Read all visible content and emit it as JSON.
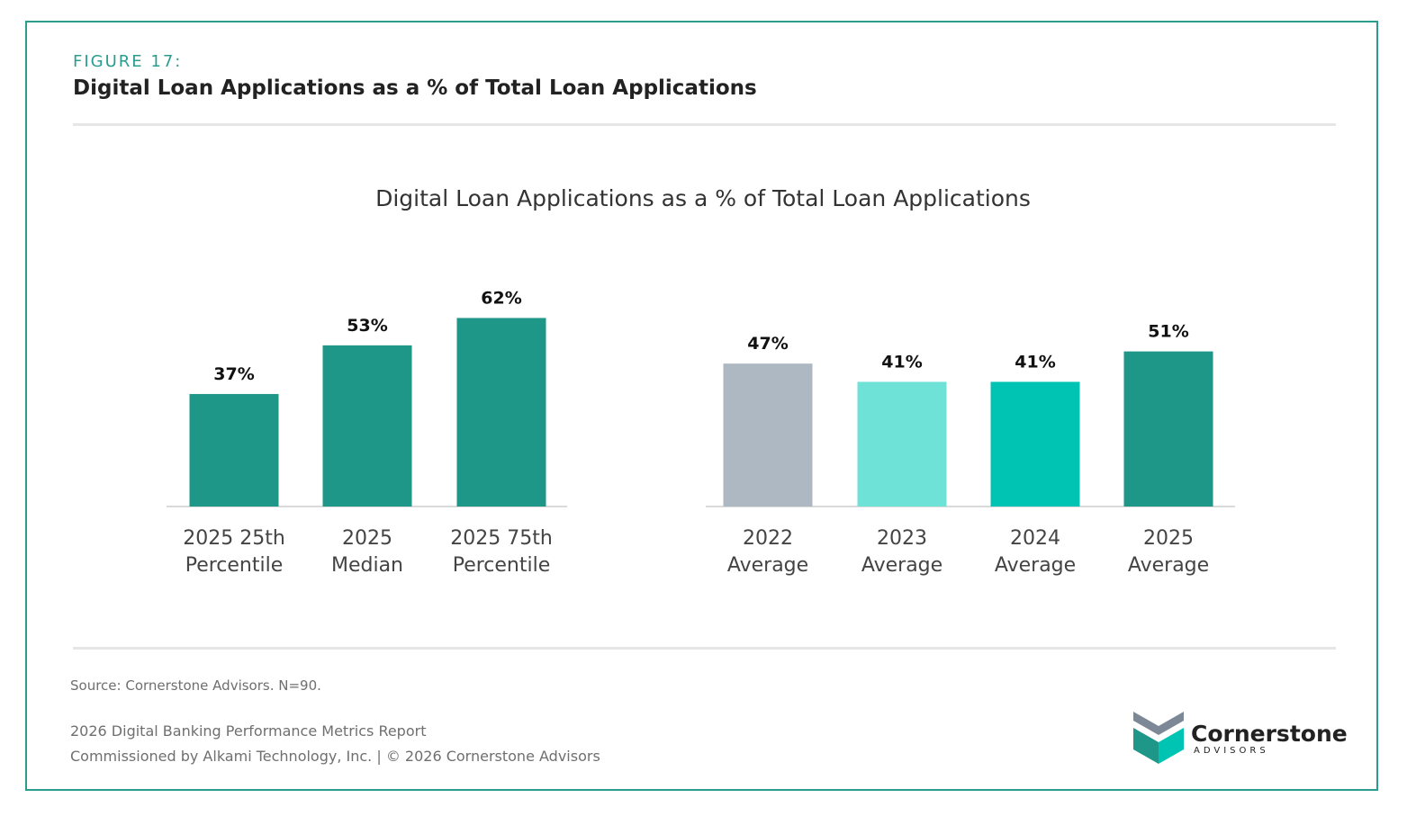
{
  "figure": {
    "label": "FIGURE 17:",
    "title": "Digital Loan Applications as a % of Total Loan Applications"
  },
  "chart_data": {
    "type": "bar",
    "title": "Digital Loan Applications as a % of Total Loan Applications",
    "xlabel": "",
    "ylabel": "",
    "unit": "%",
    "grid": false,
    "legend": "none",
    "categories": [
      [
        "2025 25th",
        "Percentile"
      ],
      [
        "2025",
        "Median"
      ],
      [
        "2025 75th",
        "Percentile"
      ],
      [
        "2022",
        "Average"
      ],
      [
        "2023",
        "Average"
      ],
      [
        "2024",
        "Average"
      ],
      [
        "2025",
        "Average"
      ]
    ],
    "values": [
      37,
      53,
      62,
      47,
      41,
      41,
      51
    ],
    "value_labels": [
      "37%",
      "53%",
      "62%",
      "47%",
      "41%",
      "41%",
      "51%"
    ],
    "colors": [
      "#1e9688",
      "#1e9688",
      "#1e9688",
      "#aeb8c3",
      "#6ee2d7",
      "#00c4b3",
      "#1e9688"
    ],
    "groups": [
      [
        0,
        1,
        2
      ],
      [
        3,
        4,
        5,
        6
      ]
    ]
  },
  "footer": {
    "source": "Source: Cornerstone Advisors. N=90.",
    "report": "2026 Digital Banking Performance Metrics Report",
    "commission": "Commissioned by Alkami Technology, Inc.  |  © 2026 Cornerstone Advisors"
  },
  "logo": {
    "name": "Cornerstone",
    "sub": "ADVISORS",
    "colors": {
      "top": "#7d8896",
      "left": "#1e9688",
      "right": "#00c4b3"
    }
  }
}
